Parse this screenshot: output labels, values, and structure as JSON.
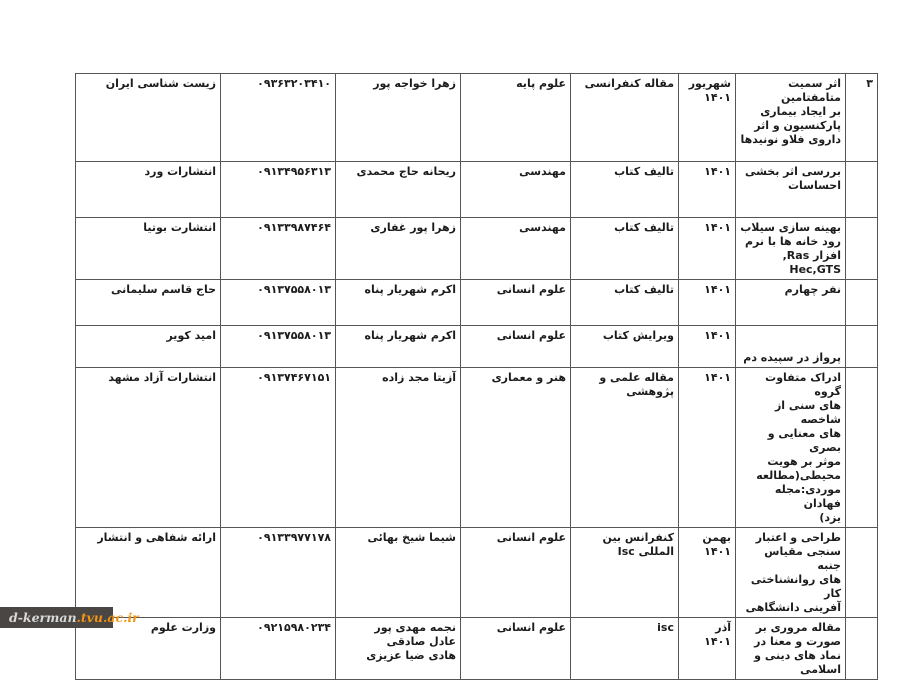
{
  "watermark": {
    "text_primary": "d-kerman",
    "text_secondary": ".tvu.ac.ir",
    "bar_color": "#4a4643",
    "primary_color": "#d9d9d9",
    "secondary_color": "#ef9413"
  },
  "table": {
    "direction": "rtl",
    "columns_rtl_order": [
      "num",
      "title",
      "date",
      "type",
      "field",
      "names",
      "phone",
      "publisher"
    ],
    "rows": [
      {
        "num": "۳",
        "title": "اثر سمیت متامفتامین\nبر ایجاد بیماری\nپارکنسیون و اثر\nداروی فلاو نونیدها",
        "date": "شهریور\n۱۴۰۱",
        "type": "مقاله کنفرانسی",
        "field": "علوم پایه",
        "names": "زهرا خواجه پور",
        "phone": "۰۹۳۶۳۲۰۳۴۱۰",
        "publisher": "زیست شناسی ایران"
      },
      {
        "num": "",
        "title": "بررسی اثر بخشی\nاحساسات",
        "date": "۱۴۰۱",
        "type": "تالیف کتاب",
        "field": "مهندسی",
        "names": "ریحانه حاج محمدی",
        "phone": "۰۹۱۳۴۹۵۶۳۱۳",
        "publisher": "انتشارات ورد"
      },
      {
        "num": "",
        "title": "بهینه سازی سیلاب\nرود خانه ها با نرم\nافزار Ras,\nHec,GTS",
        "date": "۱۴۰۱",
        "type": "تالیف کتاب",
        "field": "مهندسی",
        "names": "زهرا پور غفاری",
        "phone": "۰۹۱۳۳۹۸۷۴۶۴",
        "publisher": "انتشارت بوتیا"
      },
      {
        "num": "",
        "title": "نفر چهارم",
        "date": "۱۴۰۱",
        "type": "تالیف کتاب",
        "field": "علوم انسانی",
        "names": "اکرم شهریار پناه",
        "phone": "۰۹۱۳۷۵۵۸۰۱۳",
        "publisher": "حاج قاسم سلیمانی"
      },
      {
        "num": "",
        "title": "پرواز در سپیده دم",
        "date": "۱۴۰۱",
        "type": "ویرایش کتاب",
        "field": "علوم انسانی",
        "names": "اکرم شهریار پناه",
        "phone": "۰۹۱۳۷۵۵۸۰۱۳",
        "publisher": "امید کویر"
      },
      {
        "num": "",
        "title": "ادراک متفاوت گروه\nهای سنی از شاخصه\nهای معنایی و بصری\nموثر بر هویت\nمحیطی(مطالعه\nموردی:مجله فهادان\nیزد)",
        "date": "۱۴۰۱",
        "type": "مقاله علمی و پژوهشی",
        "field": "هنر و معماری",
        "names": "آزیتا مجد زاده",
        "phone": "۰۹۱۳۷۴۶۷۱۵۱",
        "publisher": "انتشارات آزاد مشهد"
      },
      {
        "num": "",
        "title": "طراحی و اعتبار\nسنجی مقیاس جنبه\nهای روانشناختی کار\nآفرینی دانشگاهی",
        "date": "بهمن\n۱۴۰۱",
        "type": "کنفرانس بین المللی Isc",
        "field": "علوم انسانی",
        "names": "شیما شیخ بهائی",
        "phone": "۰۹۱۳۳۹۷۷۱۷۸",
        "publisher": "ارائه شفاهی و انتشار"
      },
      {
        "num": "",
        "title": "مقاله مروری بر\nصورت و معنا در\nنماد های دینی و\nاسلامی",
        "date": "آذر\n۱۴۰۱",
        "type": "isc",
        "field": "علوم انسانی",
        "names": "نجمه مهدی پور\nعادل صادقی\nهادی ضیا عزیزی",
        "phone": "۰۹۲۱۵۹۸۰۲۳۴",
        "publisher": "وزارت علوم"
      }
    ]
  }
}
